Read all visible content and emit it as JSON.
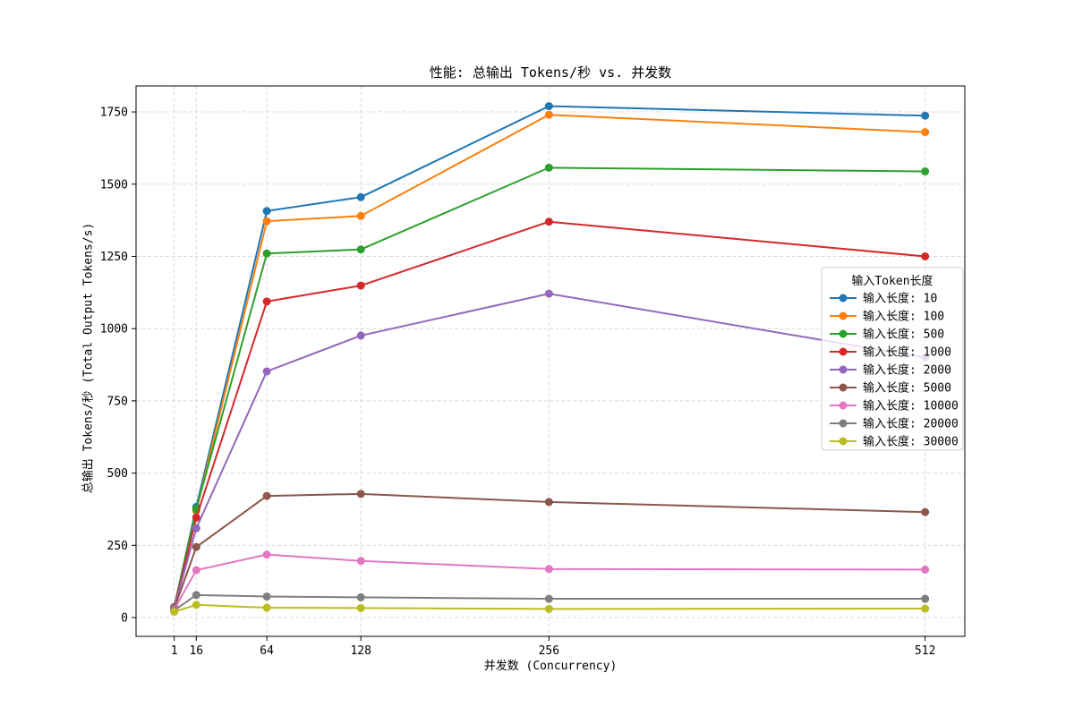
{
  "title": "性能: 总输出 Tokens/秒 vs. 并发数",
  "chart_data": {
    "type": "line",
    "title": "性能: 总输出 Tokens/秒 vs. 并发数",
    "xlabel": "并发数 (Concurrency)",
    "ylabel": "总输出 Tokens/秒 (Total Output Tokens/s)",
    "x": [
      1,
      16,
      64,
      128,
      256,
      512
    ],
    "x_ticks": [
      1,
      16,
      64,
      128,
      256,
      512
    ],
    "y_ticks": [
      0,
      250,
      500,
      750,
      1000,
      1250,
      1500,
      1750
    ],
    "xlim": [
      -25,
      539
    ],
    "ylim": [
      -65,
      1840
    ],
    "grid": true,
    "grid_style": "dashed",
    "legend_title": "输入Token长度",
    "legend_position": "center right",
    "series": [
      {
        "name": "输入长度: 10",
        "color": "#1f77b4",
        "values": [
          37,
          383,
          1407,
          1455,
          1770,
          1737
        ]
      },
      {
        "name": "输入长度: 100",
        "color": "#ff7f0e",
        "values": [
          36,
          370,
          1372,
          1390,
          1740,
          1680
        ]
      },
      {
        "name": "输入长度: 500",
        "color": "#2ca02c",
        "values": [
          35,
          376,
          1260,
          1274,
          1557,
          1544
        ]
      },
      {
        "name": "输入长度: 1000",
        "color": "#d62728",
        "values": [
          34,
          346,
          1094,
          1149,
          1370,
          1250
        ]
      },
      {
        "name": "输入长度: 2000",
        "color": "#9467bd",
        "values": [
          33,
          309,
          852,
          976,
          1121,
          900
        ]
      },
      {
        "name": "输入长度: 5000",
        "color": "#8c564b",
        "values": [
          31,
          244,
          421,
          428,
          400,
          365
        ]
      },
      {
        "name": "输入长度: 10000",
        "color": "#e377c2",
        "values": [
          28,
          164,
          218,
          196,
          168,
          166
        ]
      },
      {
        "name": "输入长度: 20000",
        "color": "#7f7f7f",
        "values": [
          25,
          78,
          73,
          70,
          65,
          65
        ]
      },
      {
        "name": "输入长度: 30000",
        "color": "#bcbd22",
        "values": [
          20,
          44,
          34,
          33,
          30,
          31
        ]
      }
    ]
  }
}
